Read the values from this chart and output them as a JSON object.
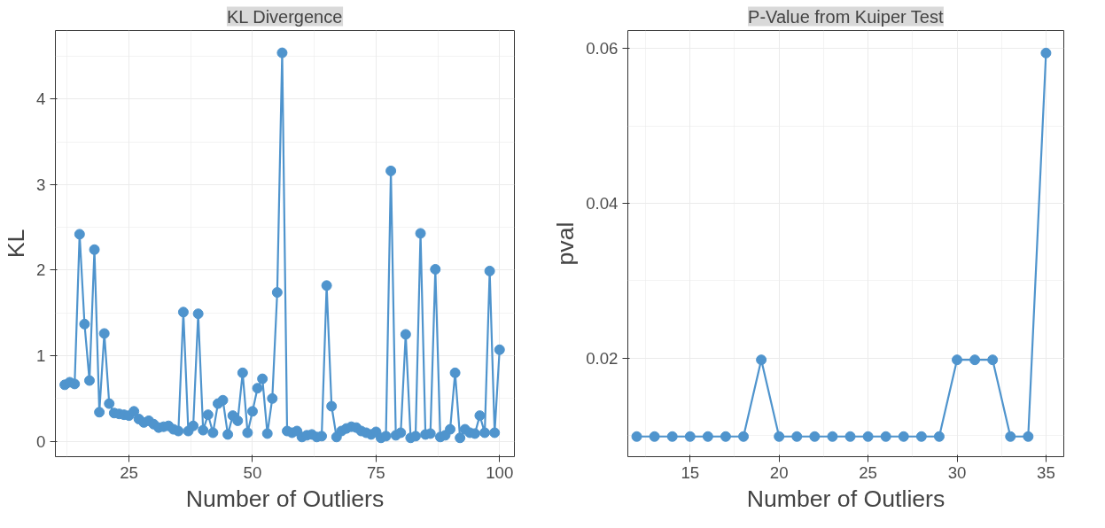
{
  "chart_data": [
    {
      "type": "line",
      "title": "KL Divergence",
      "xlabel": "Number of Outliers",
      "ylabel": "KL",
      "marker": "circle",
      "grid": true,
      "x": [
        12,
        13,
        14,
        15,
        16,
        17,
        18,
        19,
        20,
        21,
        22,
        23,
        24,
        25,
        26,
        27,
        28,
        29,
        30,
        31,
        32,
        33,
        34,
        35,
        36,
        37,
        38,
        39,
        40,
        41,
        42,
        43,
        44,
        45,
        46,
        47,
        48,
        49,
        50,
        51,
        52,
        53,
        54,
        55,
        56,
        57,
        58,
        59,
        60,
        61,
        62,
        63,
        64,
        65,
        66,
        67,
        68,
        69,
        70,
        71,
        72,
        73,
        74,
        75,
        76,
        77,
        78,
        79,
        80,
        81,
        82,
        83,
        84,
        85,
        86,
        87,
        88,
        89,
        90,
        91,
        92,
        93,
        94,
        95,
        96,
        97,
        98,
        99,
        100
      ],
      "series": [
        {
          "color": "#4f94cd",
          "values": [
            0.66,
            0.69,
            0.67,
            2.42,
            1.37,
            0.71,
            2.24,
            0.34,
            1.26,
            0.44,
            0.33,
            0.32,
            0.31,
            0.3,
            0.35,
            0.26,
            0.22,
            0.24,
            0.2,
            0.16,
            0.17,
            0.18,
            0.14,
            0.12,
            1.51,
            0.12,
            0.18,
            1.49,
            0.13,
            0.31,
            0.1,
            0.44,
            0.48,
            0.08,
            0.3,
            0.24,
            0.8,
            0.1,
            0.35,
            0.62,
            0.73,
            0.09,
            0.5,
            1.74,
            4.54,
            0.12,
            0.1,
            0.12,
            0.05,
            0.07,
            0.08,
            0.05,
            0.06,
            1.82,
            0.41,
            0.05,
            0.12,
            0.15,
            0.17,
            0.16,
            0.12,
            0.1,
            0.08,
            0.11,
            0.04,
            0.06,
            3.16,
            0.07,
            0.1,
            1.25,
            0.04,
            0.06,
            2.43,
            0.08,
            0.09,
            2.01,
            0.05,
            0.07,
            0.14,
            0.8,
            0.04,
            0.14,
            0.1,
            0.09,
            0.3,
            0.1,
            1.99,
            0.1,
            1.07
          ]
        }
      ],
      "xlim": [
        10.1,
        103
      ],
      "ylim": [
        -0.18,
        4.8
      ],
      "xticks": [
        25,
        50,
        75,
        100
      ],
      "yticks": [
        0,
        1,
        2,
        3,
        4
      ]
    },
    {
      "type": "line",
      "title": "P-Value from Kuiper Test",
      "xlabel": "Number of Outliers",
      "ylabel": "pval",
      "marker": "circle",
      "grid": true,
      "x": [
        12,
        13,
        14,
        15,
        16,
        17,
        18,
        19,
        20,
        21,
        22,
        23,
        24,
        25,
        26,
        27,
        28,
        29,
        30,
        31,
        32,
        33,
        34,
        35
      ],
      "series": [
        {
          "color": "#4f94cd",
          "values": [
            0.0099,
            0.0099,
            0.0099,
            0.0099,
            0.0099,
            0.0099,
            0.0099,
            0.0198,
            0.0099,
            0.0099,
            0.0099,
            0.0099,
            0.0099,
            0.0099,
            0.0099,
            0.0099,
            0.0099,
            0.0099,
            0.0198,
            0.0198,
            0.0198,
            0.0099,
            0.0099,
            0.0594
          ]
        }
      ],
      "xlim": [
        11.5,
        36
      ],
      "ylim": [
        0.0073,
        0.0623
      ],
      "xticks": [
        15,
        20,
        25,
        30,
        35
      ],
      "yticks": [
        0.02,
        0.04,
        0.06
      ]
    }
  ]
}
